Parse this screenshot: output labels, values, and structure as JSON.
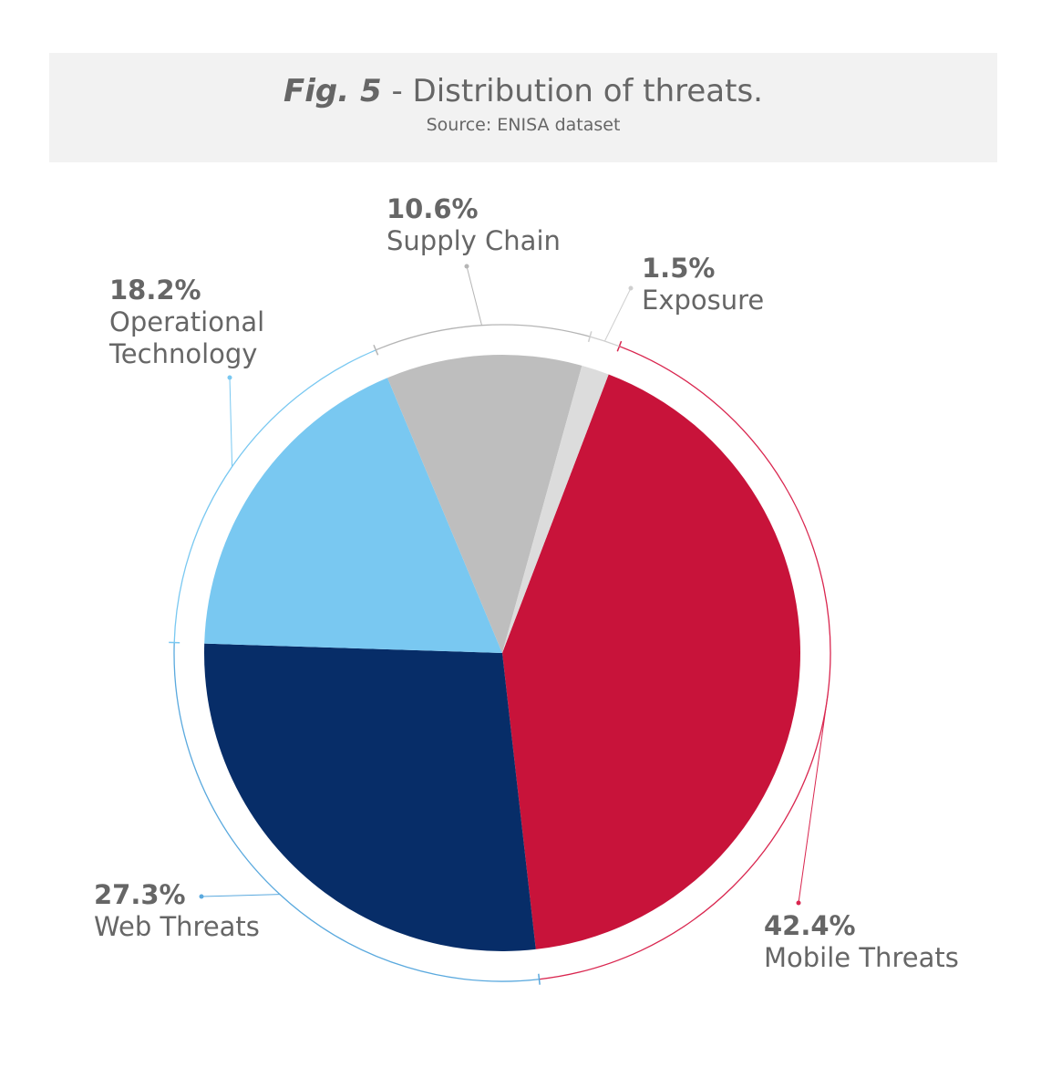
{
  "header": {
    "fig_label": "Fig. 5",
    "title_rest": " - Distribution of threats.",
    "source": "Source: ENISA dataset"
  },
  "chart_data": {
    "type": "pie",
    "title": "Fig. 5 - Distribution of threats.",
    "subtitle": "Source: ENISA dataset",
    "slices": [
      {
        "label": "Mobile Threats",
        "pct_label": "42.4%",
        "value": 42.4,
        "color": "#c8133a",
        "ring": "#d9264f"
      },
      {
        "label": "Web Threats",
        "pct_label": "27.3%",
        "value": 27.3,
        "color": "#072d68",
        "ring": "#5aa9de"
      },
      {
        "label": "Operational Technology",
        "label_lines": [
          "Operational",
          "Technology"
        ],
        "pct_label": "18.2%",
        "value": 18.2,
        "color": "#79c8f1",
        "ring": "#79c8f1"
      },
      {
        "label": "Supply Chain",
        "pct_label": "10.6%",
        "value": 10.6,
        "color": "#bebebe",
        "ring": "#b5b5b5"
      },
      {
        "label": "Exposure",
        "pct_label": "1.5%",
        "value": 1.5,
        "color": "#dcdcdc",
        "ring": "#cfcfcf"
      }
    ],
    "start_angle_deg": 20.9,
    "direction": "clockwise"
  }
}
